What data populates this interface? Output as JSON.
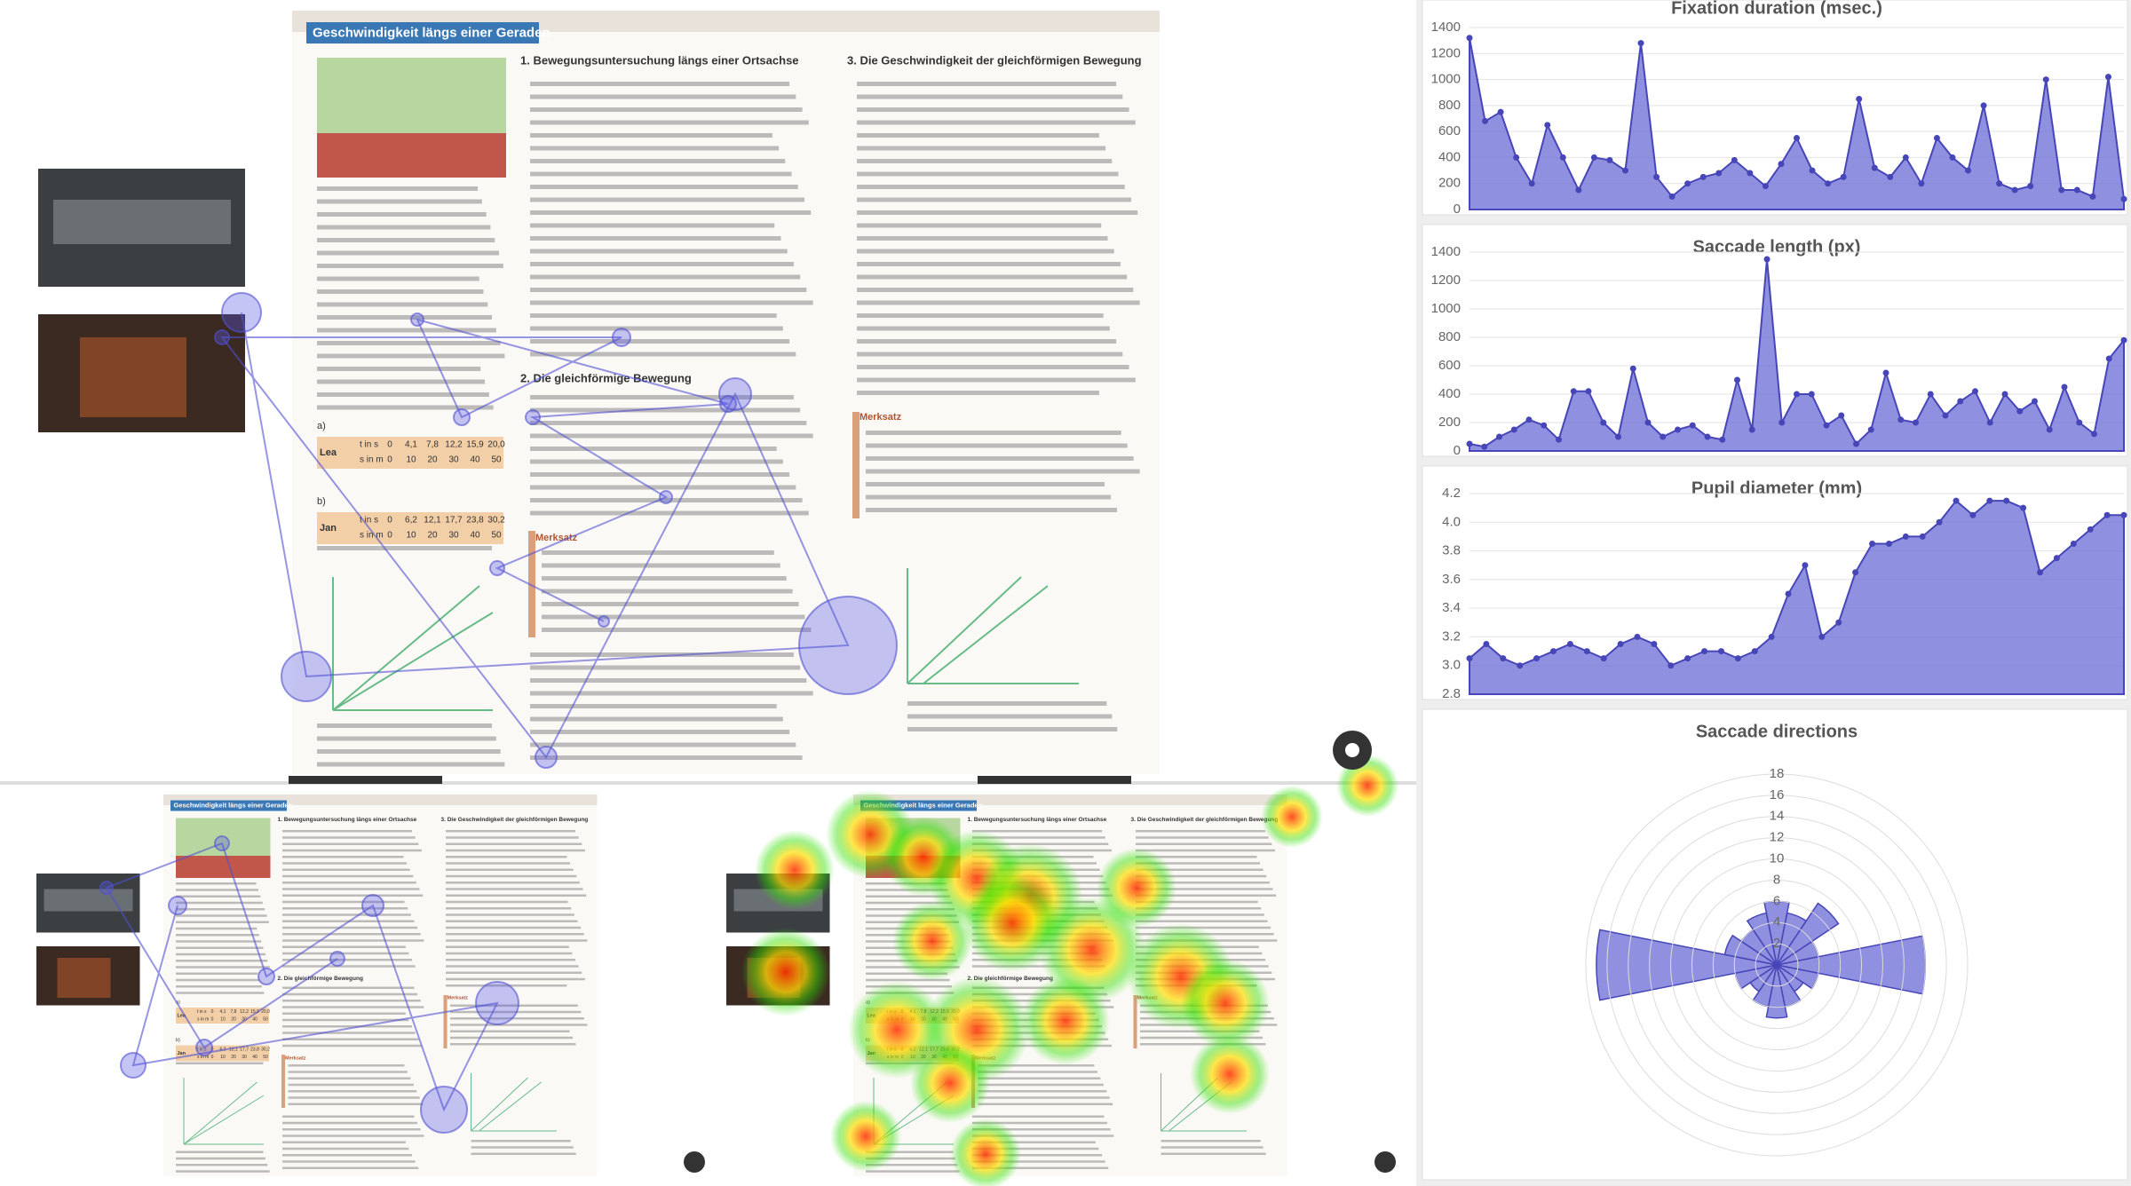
{
  "document": {
    "title": "Geschwindigkeit längs einer Geraden",
    "sections": [
      "1. Bewegungsuntersuchung längs einer Ortsachse",
      "2. Die gleichförmige Bewegung",
      "3. Die Geschwindigkeit der gleichförmigen Bewegung"
    ],
    "merksatz": [
      "Merksatz",
      "Merksatz"
    ],
    "tables": [
      {
        "label": "a)",
        "name": "Lea",
        "rows": [
          [
            "t in s",
            "0",
            "4,1",
            "7,8",
            "12,2",
            "15,9",
            "20,0"
          ],
          [
            "s in m",
            "0",
            "10",
            "20",
            "30",
            "40",
            "50"
          ]
        ]
      },
      {
        "label": "b)",
        "name": "Jan",
        "rows": [
          [
            "t in s",
            "0",
            "6,2",
            "12,1",
            "17,7",
            "23,8",
            "30,2"
          ],
          [
            "s in m",
            "0",
            "10",
            "20",
            "30",
            "40",
            "50"
          ]
        ]
      }
    ]
  },
  "chart_data": [
    {
      "type": "area",
      "title": "Fixation duration (msec.)",
      "color": "#7474d8",
      "values": [
        1320,
        680,
        750,
        400,
        200,
        650,
        400,
        150,
        400,
        380,
        300,
        1280,
        250,
        100,
        200,
        250,
        280,
        380,
        280,
        180,
        350,
        550,
        300,
        200,
        250,
        850,
        320,
        250,
        400,
        200,
        550,
        400,
        300,
        800,
        200,
        150,
        180,
        1000,
        150,
        150,
        100,
        1020,
        80
      ],
      "ylim": [
        0,
        1400
      ],
      "yticks": [
        0,
        200,
        400,
        600,
        800,
        1000,
        1200,
        1400
      ],
      "grid": true
    },
    {
      "type": "area",
      "title": "Saccade length (px)",
      "color": "#7474d8",
      "values": [
        50,
        30,
        100,
        150,
        220,
        180,
        80,
        420,
        420,
        200,
        100,
        580,
        200,
        100,
        150,
        180,
        100,
        80,
        500,
        150,
        1350,
        200,
        400,
        400,
        180,
        250,
        50,
        150,
        550,
        220,
        200,
        400,
        250,
        350,
        420,
        200,
        400,
        280,
        350,
        150,
        450,
        200,
        120,
        650,
        780
      ],
      "ylim": [
        0,
        1400
      ],
      "yticks": [
        0,
        200,
        400,
        600,
        800,
        1000,
        1200,
        1400
      ],
      "grid": true
    },
    {
      "type": "area",
      "title": "Pupil diameter (mm)",
      "color": "#7474d8",
      "values": [
        3.05,
        3.15,
        3.05,
        3.0,
        3.05,
        3.1,
        3.15,
        3.1,
        3.05,
        3.15,
        3.2,
        3.15,
        3.0,
        3.05,
        3.1,
        3.1,
        3.05,
        3.1,
        3.2,
        3.5,
        3.7,
        3.2,
        3.3,
        3.65,
        3.85,
        3.85,
        3.9,
        3.9,
        4.0,
        4.15,
        4.05,
        4.15,
        4.15,
        4.1,
        3.65,
        3.75,
        3.85,
        3.95,
        4.05,
        4.05
      ],
      "ylim": [
        2.8,
        4.2
      ],
      "yticks": [
        2.8,
        {
          "value": 3,
          "label": "3.0"
        },
        3.2,
        3.4,
        3.6,
        3.8,
        {
          "value": 4,
          "label": "4.0"
        },
        4.2
      ],
      "grid": true
    },
    {
      "type": "polar",
      "title": "Saccade directions",
      "color": "#7474d8",
      "values": [
        14,
        4,
        7,
        5,
        6,
        5,
        4,
        5,
        17,
        4,
        3,
        4,
        5,
        4,
        3,
        4
      ],
      "rlim": [
        0,
        18
      ],
      "rticks": [
        2,
        4,
        6,
        8,
        10,
        12,
        14,
        16,
        18
      ],
      "grid": true
    }
  ]
}
